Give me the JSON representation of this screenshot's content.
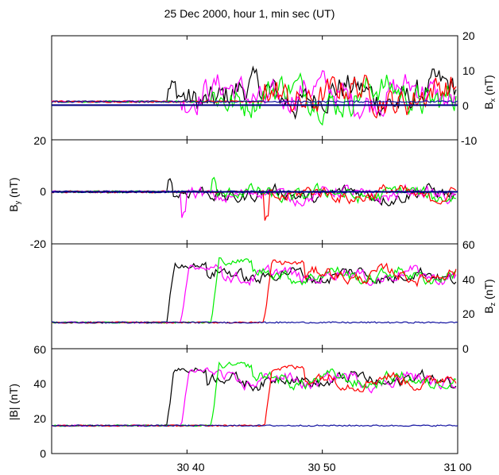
{
  "figure": {
    "title": "25 Dec 2000, hour 1, min sec (UT)",
    "x_tick_labels": [
      "30 40",
      "30 50",
      "31 00"
    ]
  },
  "colors": {
    "black": "#000000",
    "magenta": "#ff00ff",
    "green": "#00ee00",
    "red": "#ff0000",
    "blue": "#1010a0",
    "zero_line": "#000080"
  },
  "chart_data": [
    {
      "type": "line",
      "panel": "Bx",
      "ylabel": "B_x (nT)",
      "y_axis_side": "right",
      "ylim": [
        -10,
        20
      ],
      "y_ticks": [
        "-10",
        "0",
        "10",
        "20"
      ],
      "zero_line": true,
      "x_range_seconds": [
        1830,
        1860
      ],
      "series_colors": [
        "black",
        "magenta",
        "green",
        "red",
        "blue"
      ],
      "approx_levels": {
        "upstream": 1,
        "downstream_range": [
          -4,
          12
        ]
      }
    },
    {
      "type": "line",
      "panel": "By",
      "ylabel": "B_y (nT)",
      "y_axis_side": "left",
      "ylim": [
        -20,
        20
      ],
      "y_ticks": [
        "-20",
        "0",
        "20"
      ],
      "zero_line": true,
      "x_range_seconds": [
        1830,
        1860
      ],
      "series_colors": [
        "black",
        "magenta",
        "green",
        "red",
        "blue"
      ],
      "approx_levels": {
        "upstream": 0,
        "downstream_range": [
          -12,
          11
        ]
      }
    },
    {
      "type": "line",
      "panel": "Bz",
      "ylabel": "B_z (nT)",
      "y_axis_side": "right",
      "ylim": [
        0,
        60
      ],
      "y_ticks": [
        "0",
        "20",
        "40",
        "60"
      ],
      "x_range_seconds": [
        1830,
        1860
      ],
      "series_colors": [
        "black",
        "magenta",
        "green",
        "red",
        "blue"
      ],
      "approx_levels": {
        "upstream": 15,
        "downstream": 42,
        "overshoot_peak": 50
      }
    },
    {
      "type": "line",
      "panel": "Bmag",
      "ylabel": "|B| (nT)",
      "y_axis_side": "left",
      "ylim": [
        0,
        60
      ],
      "y_ticks": [
        "0",
        "20",
        "40",
        "60"
      ],
      "x_range_seconds": [
        1830,
        1860
      ],
      "x_ticks_seconds": [
        1840,
        1850,
        1860
      ],
      "series_colors": [
        "black",
        "magenta",
        "green",
        "red",
        "blue"
      ],
      "approx_levels": {
        "upstream": 16,
        "downstream": 42,
        "overshoot_peak": 50
      }
    }
  ]
}
